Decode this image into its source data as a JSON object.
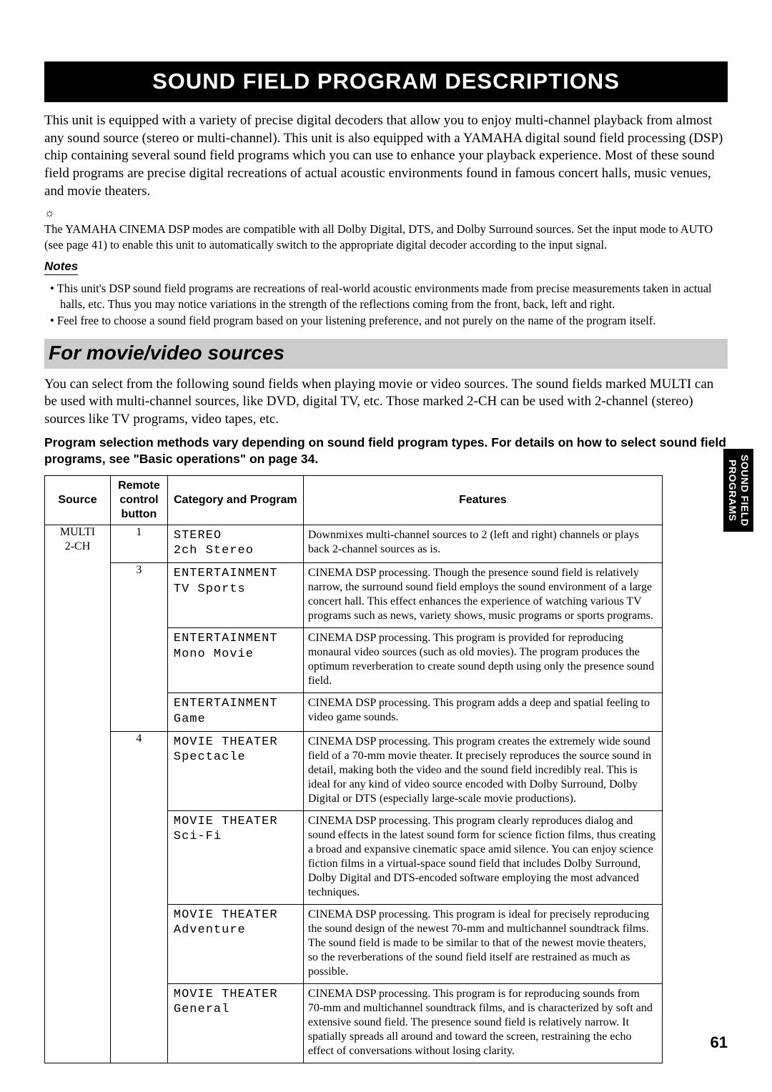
{
  "title": "SOUND FIELD PROGRAM DESCRIPTIONS",
  "intro": "This unit is equipped with a variety of precise digital decoders that allow you to enjoy multi-channel playback from almost any sound source (stereo or multi-channel). This unit is also equipped with a YAMAHA digital sound field processing (DSP) chip containing several sound field programs which you can use to enhance your playback experience. Most of these sound field programs are precise digital recreations of actual acoustic environments found in famous concert halls, music venues, and movie theaters.",
  "tip_icon": "☼",
  "tip": "The YAMAHA CINEMA DSP modes are compatible with all Dolby Digital, DTS, and Dolby Surround sources. Set the input mode to AUTO (see page 41) to enable this unit to automatically switch to the appropriate digital decoder according to the input signal.",
  "notes_label": "Notes",
  "notes": [
    "This unit's DSP sound field programs are recreations of real-world acoustic environments made from precise measurements taken in actual halls, etc. Thus you may notice variations in the strength of the reflections coming from the front, back, left and right.",
    "Feel free to choose a sound field program based on your listening preference, and not purely on the name of the program itself."
  ],
  "section_heading": "For movie/video sources",
  "section_text": "You can select from the following sound fields when playing movie or video sources. The sound fields marked MULTI can be used with multi-channel sources, like DVD, digital TV, etc. Those marked 2-CH can be used with 2-channel (stereo) sources like TV programs, video tapes, etc.",
  "section_bold": "Program selection methods vary depending on sound field program types. For details on how to select sound field programs, see \"Basic operations\" on page 34.",
  "table": {
    "headers": {
      "source": "Source",
      "button": "Remote control button",
      "category": "Category and Program",
      "features": "Features"
    },
    "source_label_1": "MULTI",
    "source_label_2": "2-CH",
    "groups": [
      {
        "button": "1",
        "rows": [
          {
            "category": "STEREO",
            "program": "2ch Stereo",
            "features": "Downmixes multi-channel sources to 2 (left and right) channels or plays back 2-channel sources as is."
          }
        ]
      },
      {
        "button": "3",
        "rows": [
          {
            "category": "ENTERTAINMENT",
            "program": "TV Sports",
            "features": "CINEMA DSP processing. Though the presence sound field is relatively narrow, the surround sound field employs the sound environment of a large concert hall. This effect enhances the experience of watching various TV programs such as news, variety shows, music programs or sports programs."
          },
          {
            "category": "ENTERTAINMENT",
            "program": "Mono Movie",
            "features": "CINEMA DSP processing. This program is provided for reproducing monaural video sources (such as old movies). The program produces the optimum reverberation to create sound depth using only the presence sound field."
          },
          {
            "category": "ENTERTAINMENT",
            "program": "Game",
            "features": "CINEMA DSP processing. This program adds a deep and spatial feeling to video game sounds."
          }
        ]
      },
      {
        "button": "4",
        "rows": [
          {
            "category": "MOVIE THEATER",
            "program": "Spectacle",
            "features": "CINEMA DSP processing. This program creates the extremely wide sound field of a 70-mm movie theater. It precisely reproduces the source sound in detail, making both the video and the sound field incredibly real. This is ideal for any kind of video source encoded with Dolby Surround, Dolby Digital or DTS (especially large-scale movie productions)."
          },
          {
            "category": "MOVIE THEATER",
            "program": "Sci-Fi",
            "features": "CINEMA DSP processing. This program clearly reproduces dialog and sound effects in the latest sound form for science fiction films, thus creating a broad and expansive cinematic space amid silence. You can enjoy science fiction films in a virtual-space sound field that includes Dolby Surround, Dolby Digital and DTS-encoded software employing the most advanced techniques."
          },
          {
            "category": "MOVIE THEATER",
            "program": "Adventure",
            "features": "CINEMA DSP processing. This program is ideal for precisely reproducing the sound design of the newest 70-mm and multichannel soundtrack films. The sound field is made to be similar to that of the newest movie theaters, so the reverberations of the sound field itself are restrained as much as possible."
          },
          {
            "category": "MOVIE THEATER",
            "program": "General",
            "features": "CINEMA DSP processing. This program is for reproducing sounds from 70-mm and multichannel soundtrack films, and is characterized by soft and extensive sound field. The presence sound field is relatively narrow. It spatially spreads all around and toward the screen, restraining the echo effect of conversations without losing clarity."
          }
        ]
      }
    ]
  },
  "side_tab_1": "SOUND FIELD",
  "side_tab_2": "PROGRAMS",
  "page_number": "61"
}
